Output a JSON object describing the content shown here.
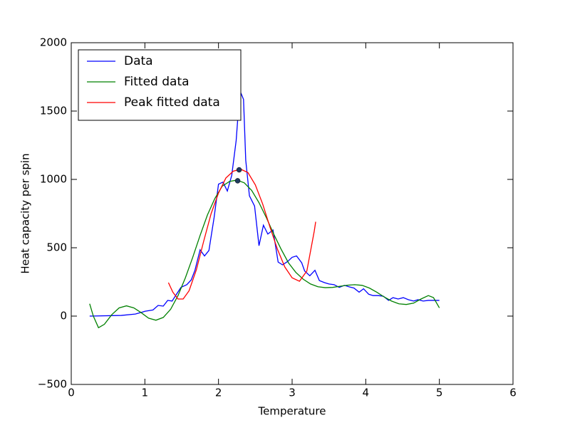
{
  "chart_data": {
    "type": "line",
    "xlabel": "Temperature",
    "ylabel": "Heat capacity per spin",
    "xlim": [
      0,
      6
    ],
    "ylim": [
      -500,
      2000
    ],
    "xticks": [
      0,
      1,
      2,
      3,
      4,
      5,
      6
    ],
    "yticks": [
      {
        "value": -500,
        "label": "−500"
      },
      0,
      500,
      1000,
      1500,
      2000
    ],
    "legend": "upper left",
    "series": [
      {
        "name": "Data",
        "color": "#0000ff",
        "x": [
          0.25,
          0.68,
          0.87,
          0.97,
          1.0,
          1.11,
          1.18,
          1.25,
          1.31,
          1.37,
          1.43,
          1.49,
          1.57,
          1.63,
          1.68,
          1.75,
          1.81,
          1.87,
          1.94,
          2.0,
          2.06,
          2.12,
          2.18,
          2.24,
          2.29,
          2.34,
          2.37,
          2.42,
          2.49,
          2.55,
          2.61,
          2.67,
          2.74,
          2.81,
          2.87,
          2.94,
          3.0,
          3.06,
          3.13,
          3.17,
          3.24,
          3.31,
          3.37,
          3.44,
          3.5,
          3.57,
          3.64,
          3.71,
          3.77,
          3.84,
          3.91,
          3.97,
          4.04,
          4.1,
          4.17,
          4.24,
          4.31,
          4.37,
          4.44,
          4.51,
          4.58,
          4.65,
          4.71,
          4.78,
          4.85,
          4.92,
          5.0
        ],
        "values": [
          0,
          5,
          15,
          30,
          35,
          45,
          78,
          73,
          115,
          110,
          160,
          210,
          230,
          265,
          335,
          485,
          440,
          480,
          720,
          965,
          980,
          915,
          1030,
          1285,
          1650,
          1585,
          1140,
          880,
          805,
          515,
          665,
          600,
          630,
          395,
          375,
          400,
          430,
          440,
          390,
          330,
          295,
          335,
          260,
          245,
          235,
          230,
          210,
          225,
          215,
          205,
          175,
          200,
          160,
          150,
          150,
          145,
          115,
          135,
          125,
          135,
          120,
          110,
          120,
          110,
          115,
          115,
          115
        ]
      },
      {
        "name": "Fitted data",
        "color": "#008000",
        "x": [
          0.25,
          0.3,
          0.37,
          0.45,
          0.55,
          0.65,
          0.75,
          0.85,
          0.95,
          1.05,
          1.15,
          1.25,
          1.35,
          1.45,
          1.55,
          1.65,
          1.75,
          1.85,
          1.95,
          2.05,
          2.15,
          2.25,
          2.35,
          2.45,
          2.55,
          2.65,
          2.75,
          2.85,
          2.95,
          3.05,
          3.15,
          3.25,
          3.35,
          3.45,
          3.55,
          3.65,
          3.75,
          3.85,
          3.95,
          4.05,
          4.15,
          4.25,
          4.35,
          4.45,
          4.55,
          4.65,
          4.75,
          4.85,
          4.92,
          5.0
        ],
        "values": [
          90,
          0,
          -85,
          -60,
          10,
          60,
          75,
          60,
          25,
          -15,
          -30,
          -10,
          50,
          150,
          280,
          430,
          590,
          740,
          860,
          950,
          985,
          995,
          975,
          920,
          830,
          720,
          600,
          490,
          390,
          320,
          270,
          235,
          215,
          208,
          210,
          218,
          226,
          230,
          225,
          205,
          175,
          140,
          110,
          90,
          85,
          95,
          125,
          150,
          135,
          60
        ]
      },
      {
        "name": "Peak fitted data",
        "color": "#ff0000",
        "x": [
          1.32,
          1.38,
          1.45,
          1.52,
          1.6,
          1.7,
          1.8,
          1.9,
          2.0,
          2.1,
          2.2,
          2.3,
          2.4,
          2.5,
          2.6,
          2.7,
          2.8,
          2.9,
          3.0,
          3.1,
          3.2,
          3.3,
          3.32
        ],
        "values": [
          245,
          175,
          125,
          125,
          185,
          340,
          550,
          750,
          900,
          1010,
          1060,
          1075,
          1050,
          960,
          820,
          650,
          490,
          360,
          280,
          255,
          330,
          620,
          690
        ]
      }
    ],
    "points": {
      "color": "#1f3a5f",
      "x": [
        2.28,
        2.26
      ],
      "values": [
        1070,
        990
      ]
    }
  }
}
